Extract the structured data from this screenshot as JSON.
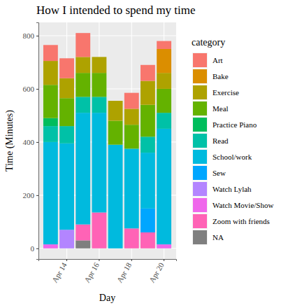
{
  "chart_data": {
    "type": "bar",
    "title": "How I intended to spend my time",
    "x_label": "Day",
    "y_label": "Time (Minutes)",
    "legend_title": "category",
    "categories": [
      null,
      "Apr 14",
      null,
      "Apr 16",
      null,
      "Apr 18",
      null,
      "Apr 20"
    ],
    "series": [
      {
        "name": "Art",
        "color": "#F8766D",
        "values": [
          60,
          75,
          90,
          0,
          0,
          60,
          60,
          30
        ]
      },
      {
        "name": "Bake",
        "color": "#DB8E00",
        "values": [
          0,
          0,
          0,
          0,
          0,
          0,
          0,
          90
        ]
      },
      {
        "name": "Exercise",
        "color": "#AEA200",
        "values": [
          90,
          75,
          60,
          60,
          75,
          60,
          90,
          60
        ]
      },
      {
        "name": "Meal",
        "color": "#64B200",
        "values": [
          125,
          105,
          90,
          90,
          90,
          90,
          120,
          90
        ]
      },
      {
        "name": "Practice Piano",
        "color": "#00BD5C",
        "values": [
          30,
          0,
          0,
          0,
          0,
          0,
          0,
          0
        ]
      },
      {
        "name": "Read",
        "color": "#00C1A7",
        "values": [
          60,
          65,
          60,
          60,
          0,
          0,
          60,
          60
        ]
      },
      {
        "name": "School/work",
        "color": "#00BADE",
        "values": [
          385,
          325,
          420,
          375,
          390,
          300,
          210,
          435
        ]
      },
      {
        "name": "Sew",
        "color": "#00A6FF",
        "values": [
          0,
          0,
          0,
          0,
          0,
          0,
          90,
          0
        ]
      },
      {
        "name": "Watch Lylah",
        "color": "#B385FF",
        "values": [
          0,
          70,
          0,
          0,
          0,
          0,
          0,
          0
        ]
      },
      {
        "name": "Watch Movie/Show",
        "color": "#EF67EB",
        "values": [
          15,
          0,
          0,
          0,
          0,
          0,
          0,
          15
        ]
      },
      {
        "name": "Zoom with friends",
        "color": "#FF63B6",
        "values": [
          0,
          0,
          60,
          135,
          0,
          75,
          60,
          0
        ]
      },
      {
        "name": "NA",
        "color": "#7F7F7F",
        "values": [
          0,
          0,
          30,
          0,
          0,
          0,
          0,
          0
        ]
      }
    ],
    "stacked": true,
    "grid": true,
    "legend": "right",
    "ylim": [
      -40,
      850
    ],
    "yticks": [
      0,
      200,
      400,
      600,
      800
    ]
  }
}
